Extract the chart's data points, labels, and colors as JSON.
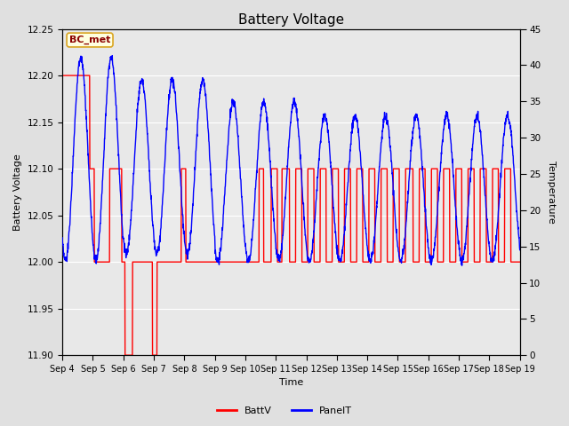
{
  "title": "Battery Voltage",
  "xlabel": "Time",
  "ylabel_left": "Battery Voltage",
  "ylabel_right": "Temperature",
  "annotation": "BC_met",
  "ylim_left": [
    11.9,
    12.25
  ],
  "ylim_right": [
    0,
    45
  ],
  "yticks_left": [
    11.9,
    11.95,
    12.0,
    12.05,
    12.1,
    12.15,
    12.2,
    12.25
  ],
  "yticks_right": [
    0,
    5,
    10,
    15,
    20,
    25,
    30,
    35,
    40,
    45
  ],
  "background_color": "#e0e0e0",
  "plot_bg_color": "#d0d0d0",
  "inner_bg_color": "#e8e8e8",
  "grid_color": "white",
  "batt_color": "red",
  "panel_color": "blue",
  "legend_batt": "BattV",
  "legend_panel": "PanelT",
  "title_fontsize": 11,
  "label_fontsize": 8,
  "tick_fontsize": 7.5,
  "annot_fontsize": 8,
  "legend_fontsize": 8
}
